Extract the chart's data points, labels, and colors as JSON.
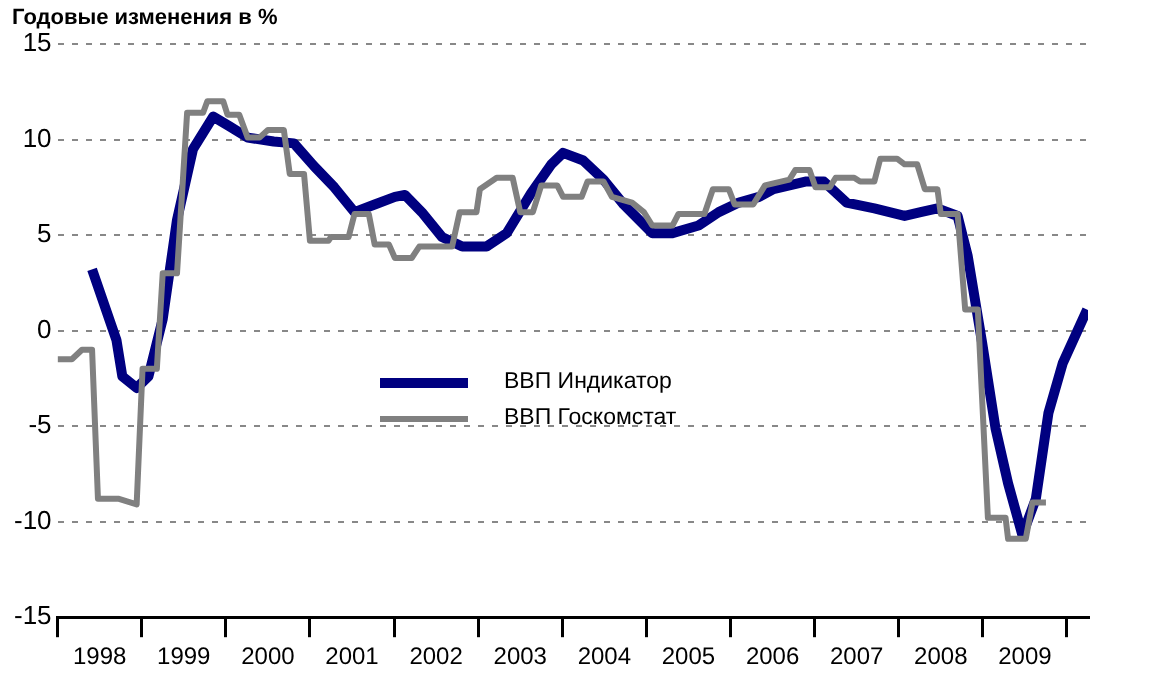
{
  "chart_data": {
    "type": "line",
    "title": "Годовые изменения в %",
    "xlim": [
      1998,
      2010.25
    ],
    "xticks": [
      {
        "value": 1998,
        "label": null
      },
      {
        "value": 1998.5,
        "label": "1998"
      },
      {
        "value": 1999,
        "label": null
      },
      {
        "value": 1999.5,
        "label": "1999"
      },
      {
        "value": 2000,
        "label": null
      },
      {
        "value": 2000.5,
        "label": "2000"
      },
      {
        "value": 2001,
        "label": null
      },
      {
        "value": 2001.5,
        "label": "2001"
      },
      {
        "value": 2002,
        "label": null
      },
      {
        "value": 2002.5,
        "label": "2002"
      },
      {
        "value": 2003,
        "label": null
      },
      {
        "value": 2003.5,
        "label": "2003"
      },
      {
        "value": 2004,
        "label": null
      },
      {
        "value": 2004.5,
        "label": "2004"
      },
      {
        "value": 2005,
        "label": null
      },
      {
        "value": 2005.5,
        "label": "2005"
      },
      {
        "value": 2006,
        "label": null
      },
      {
        "value": 2006.5,
        "label": "2006"
      },
      {
        "value": 2007,
        "label": null
      },
      {
        "value": 2007.5,
        "label": "2007"
      },
      {
        "value": 2008,
        "label": null
      },
      {
        "value": 2008.5,
        "label": "2008"
      },
      {
        "value": 2009,
        "label": null
      },
      {
        "value": 2009.5,
        "label": "2009"
      },
      {
        "value": 2010,
        "label": null
      }
    ],
    "ylim": [
      -15,
      15
    ],
    "yticks": [
      -15,
      -10,
      -5,
      0,
      5,
      10,
      15
    ],
    "grid": "y",
    "legend": "center",
    "marker": "none",
    "series": [
      {
        "name": "ВВП Индикатор",
        "color": "#000080",
        "x": [
          1998.41,
          1998.7,
          1998.77,
          1998.94,
          1999.08,
          1999.25,
          1999.42,
          1999.61,
          1999.85,
          2000.04,
          2000.26,
          2000.57,
          2000.81,
          2001.05,
          2001.29,
          2001.53,
          2001.77,
          2002.01,
          2002.13,
          2002.33,
          2002.57,
          2002.81,
          2003.1,
          2003.34,
          2003.63,
          2003.87,
          2004.01,
          2004.25,
          2004.49,
          2004.73,
          2005.07,
          2005.31,
          2005.62,
          2005.86,
          2006.1,
          2006.34,
          2006.51,
          2006.89,
          2007.11,
          2007.38,
          2007.71,
          2008.07,
          2008.26,
          2008.46,
          2008.7,
          2008.82,
          2008.99,
          2009.15,
          2009.3,
          2009.47,
          2009.63,
          2009.78,
          2009.95,
          2010.24
        ],
        "values": [
          3.2,
          -0.5,
          -2.4,
          -3.0,
          -2.4,
          0.6,
          5.8,
          9.5,
          11.2,
          10.7,
          10.1,
          9.9,
          9.8,
          8.6,
          7.5,
          6.2,
          6.6,
          7.0,
          7.1,
          6.2,
          4.9,
          4.4,
          4.4,
          5.1,
          7.2,
          8.7,
          9.3,
          8.9,
          7.9,
          6.6,
          5.1,
          5.1,
          5.5,
          6.2,
          6.7,
          7.0,
          7.4,
          7.8,
          7.8,
          6.7,
          6.4,
          6.0,
          6.2,
          6.4,
          6.0,
          3.9,
          -0.6,
          -5.1,
          -8.0,
          -10.7,
          -8.8,
          -4.3,
          -1.7,
          1.1
        ]
      },
      {
        "name": "ВВП Госкомстат",
        "color": "#808080",
        "x": [
          1998.0,
          1998.17,
          1998.29,
          1998.41,
          1998.48,
          1998.72,
          1998.94,
          1999.01,
          1999.18,
          1999.25,
          1999.42,
          1999.54,
          1999.73,
          1999.78,
          1999.97,
          2000.02,
          2000.16,
          2000.26,
          2000.4,
          2000.5,
          2000.69,
          2000.76,
          2000.93,
          2001.0,
          2001.22,
          2001.25,
          2001.46,
          2001.53,
          2001.7,
          2001.77,
          2001.94,
          2002.01,
          2002.21,
          2002.3,
          2002.69,
          2002.78,
          2002.98,
          2003.02,
          2003.22,
          2003.41,
          2003.5,
          2003.65,
          2003.75,
          2003.94,
          2004.01,
          2004.23,
          2004.3,
          2004.49,
          2004.59,
          2004.83,
          2004.97,
          2005.07,
          2005.31,
          2005.38,
          2005.69,
          2005.79,
          2005.98,
          2006.05,
          2006.27,
          2006.41,
          2006.7,
          2006.77,
          2006.94,
          2007.01,
          2007.18,
          2007.25,
          2007.47,
          2007.54,
          2007.71,
          2007.78,
          2007.98,
          2008.07,
          2008.22,
          2008.31,
          2008.46,
          2008.5,
          2008.7,
          2008.79,
          2008.94,
          2009.06,
          2009.27,
          2009.3,
          2009.51,
          2009.59,
          2009.75
        ],
        "values": [
          -1.5,
          -1.5,
          -1.0,
          -1.0,
          -8.8,
          -8.8,
          -9.1,
          -2.0,
          -2.0,
          3.0,
          3.0,
          11.4,
          11.4,
          12.0,
          12.0,
          11.3,
          11.3,
          10.1,
          10.1,
          10.5,
          10.5,
          8.2,
          8.2,
          4.7,
          4.7,
          4.9,
          4.9,
          6.1,
          6.1,
          4.5,
          4.5,
          3.8,
          3.8,
          4.4,
          4.4,
          6.2,
          6.2,
          7.4,
          8.0,
          8.0,
          6.2,
          6.2,
          7.6,
          7.6,
          7.0,
          7.0,
          7.8,
          7.8,
          7.0,
          6.7,
          6.2,
          5.5,
          5.5,
          6.1,
          6.1,
          7.4,
          7.4,
          6.6,
          6.6,
          7.6,
          7.9,
          8.4,
          8.4,
          7.5,
          7.5,
          8.0,
          8.0,
          7.8,
          7.8,
          9.0,
          9.0,
          8.7,
          8.7,
          7.4,
          7.4,
          6.1,
          6.1,
          1.1,
          1.1,
          -9.8,
          -9.8,
          -10.9,
          -10.9,
          -9.0,
          -9.0
        ]
      }
    ]
  }
}
